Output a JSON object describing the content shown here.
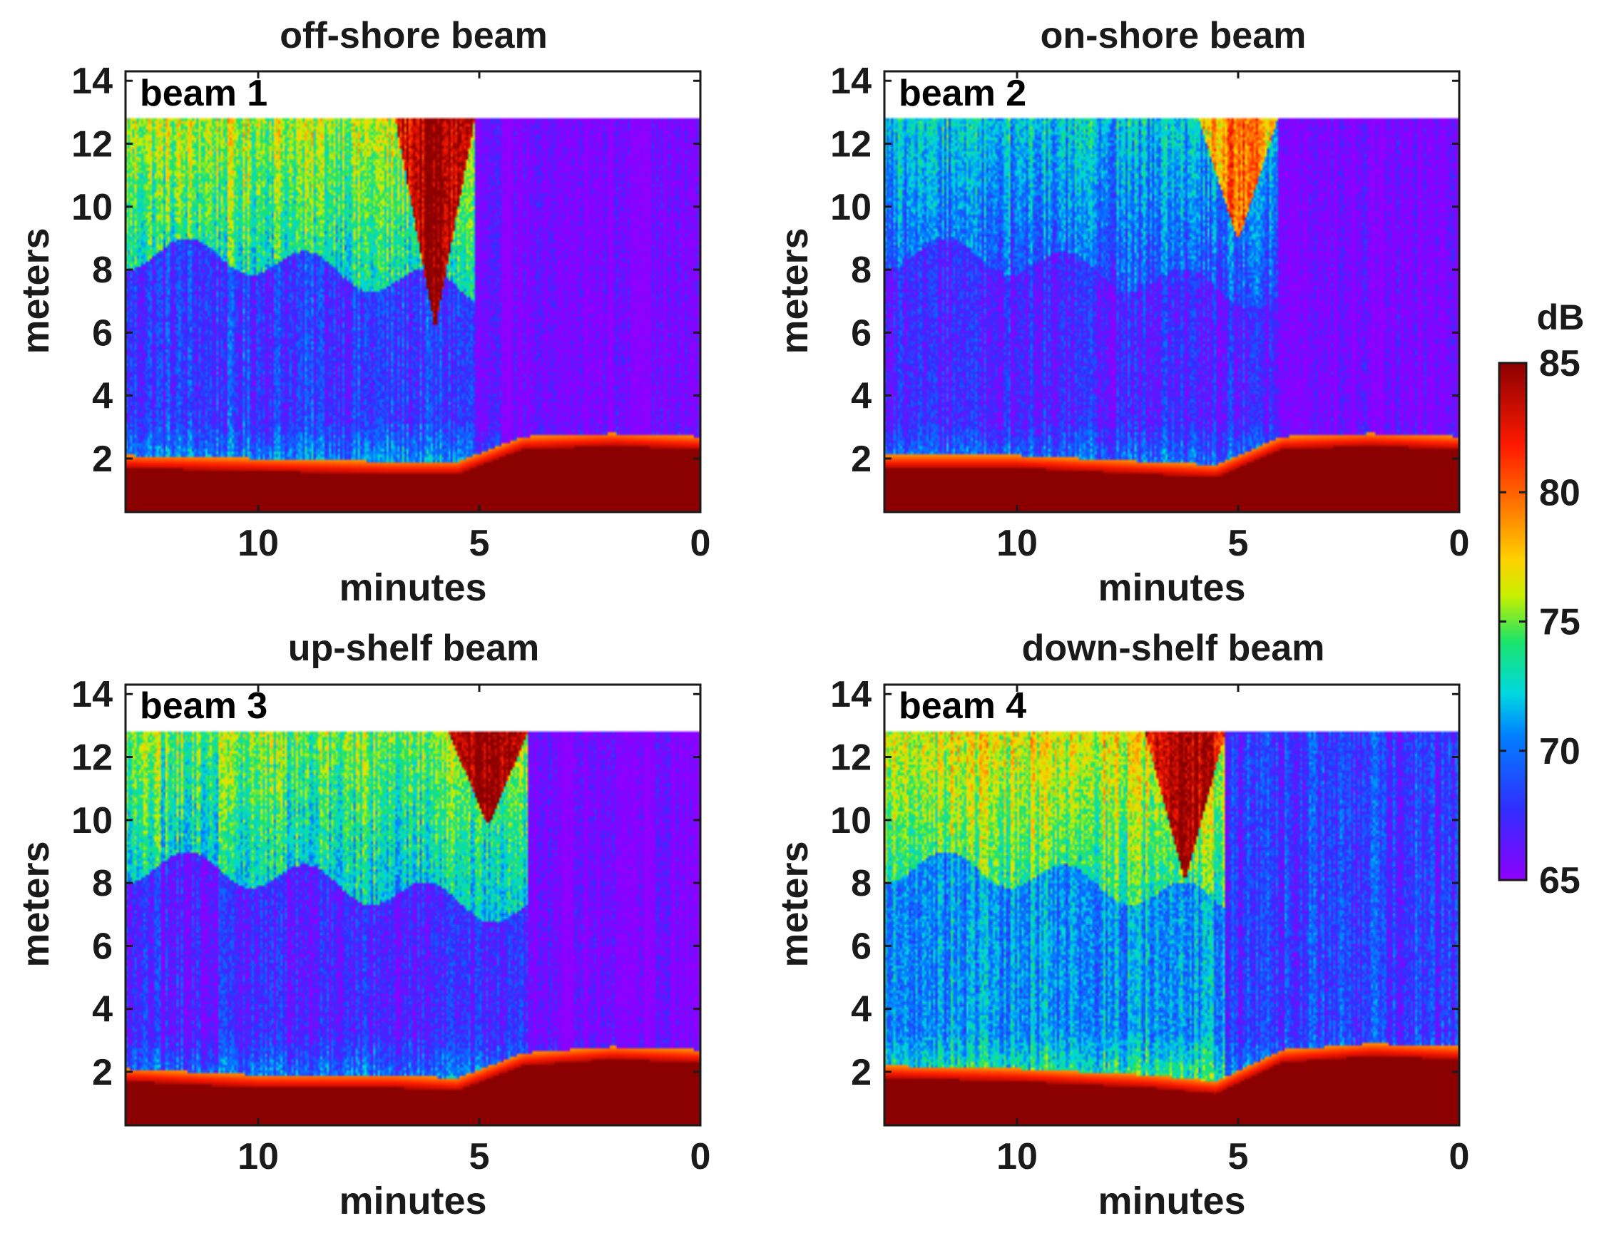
{
  "chart_data": [
    {
      "type": "heatmap",
      "title": "off-shore beam",
      "annotation": "beam 1",
      "xlabel": "minutes",
      "ylabel": "meters",
      "xlim": [
        13,
        0
      ],
      "ylim": [
        0.3,
        14.3
      ],
      "xticks": [
        "10",
        "5",
        "0"
      ],
      "yticks": [
        "2",
        "4",
        "6",
        "8",
        "10",
        "12",
        "14"
      ],
      "data_top_m": 12.8,
      "description": "volume backscatter intensity (dB) vs time before present and height above bed",
      "features": {
        "bed_layer_height_m": {
          "minutes": [
            13,
            10,
            7,
            5.5,
            4,
            2,
            0
          ],
          "meters": [
            1.7,
            1.6,
            1.5,
            1.5,
            2.3,
            2.4,
            2.3
          ]
        },
        "plume_core": {
          "x_center_min": 6.0,
          "top_m": 12.8,
          "bottom_m": 6.1,
          "dB": 85
        },
        "upper_layer_dB_before_front": 76,
        "background_dB": 68,
        "after_front_dB": 65
      }
    },
    {
      "type": "heatmap",
      "title": "on-shore beam",
      "annotation": "beam 2",
      "xlabel": "minutes",
      "ylabel": "meters",
      "xlim": [
        13,
        0
      ],
      "ylim": [
        0.3,
        14.3
      ],
      "xticks": [
        "10",
        "5",
        "0"
      ],
      "yticks": [
        "2",
        "4",
        "6",
        "8",
        "10",
        "12",
        "14"
      ],
      "data_top_m": 12.8,
      "features": {
        "bed_layer_height_m": {
          "minutes": [
            13,
            10,
            7,
            5.5,
            4,
            2,
            0
          ],
          "meters": [
            1.7,
            1.7,
            1.5,
            1.4,
            2.3,
            2.4,
            2.3
          ]
        },
        "plume_core": {
          "x_center_min": 5.0,
          "top_m": 12.8,
          "bottom_m": 8.9,
          "dB": 80
        },
        "upper_layer_dB_before_front": 72,
        "background_dB": 67,
        "after_front_dB": 65
      }
    },
    {
      "type": "heatmap",
      "title": "up-shelf beam",
      "annotation": "beam 3",
      "xlabel": "minutes",
      "ylabel": "meters",
      "xlim": [
        13,
        0
      ],
      "ylim": [
        0.3,
        14.3
      ],
      "xticks": [
        "10",
        "5",
        "0"
      ],
      "yticks": [
        "2",
        "4",
        "6",
        "8",
        "10",
        "12",
        "14"
      ],
      "data_top_m": 12.8,
      "features": {
        "bed_layer_height_m": {
          "minutes": [
            13,
            10,
            7,
            5.5,
            4,
            2,
            0
          ],
          "meters": [
            1.7,
            1.5,
            1.5,
            1.4,
            2.2,
            2.4,
            2.3
          ]
        },
        "plume_core": {
          "x_center_min": 4.8,
          "top_m": 12.8,
          "bottom_m": 9.8,
          "dB": 85
        },
        "upper_layer_dB_before_front": 75,
        "background_dB": 67,
        "after_front_dB": 65
      }
    },
    {
      "type": "heatmap",
      "title": "down-shelf beam",
      "annotation": "beam 4",
      "xlabel": "minutes",
      "ylabel": "meters",
      "xlim": [
        13,
        0
      ],
      "ylim": [
        0.3,
        14.3
      ],
      "xticks": [
        "10",
        "5",
        "0"
      ],
      "yticks": [
        "2",
        "4",
        "6",
        "8",
        "10",
        "12",
        "14"
      ],
      "data_top_m": 12.8,
      "features": {
        "bed_layer_height_m": {
          "minutes": [
            13,
            10,
            7,
            5.5,
            4,
            2,
            0
          ],
          "meters": [
            1.8,
            1.7,
            1.5,
            1.3,
            2.3,
            2.5,
            2.4
          ]
        },
        "plume_core": {
          "x_center_min": 6.2,
          "top_m": 12.8,
          "bottom_m": 8.0,
          "dB": 85
        },
        "upper_layer_dB_before_front": 77,
        "background_dB": 71,
        "after_front_dB": 68
      }
    }
  ],
  "colorbar": {
    "label": "dB",
    "range": [
      65,
      85
    ],
    "ticks": [
      "65",
      "70",
      "75",
      "80",
      "85"
    ],
    "colormap": [
      "#8f00ff",
      "#2f2fff",
      "#00b7ff",
      "#19e36b",
      "#f5f000",
      "#ff9900",
      "#ff1a00",
      "#8b0000"
    ]
  }
}
